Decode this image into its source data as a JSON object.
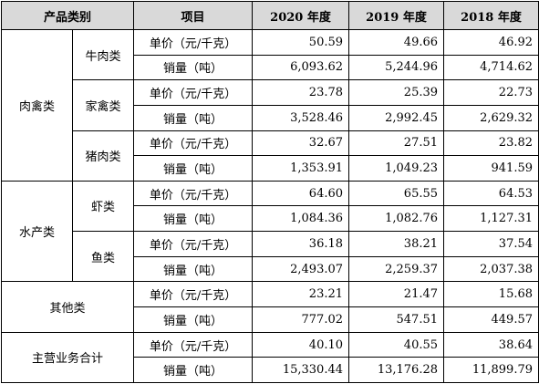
{
  "headers": {
    "category": "产品类别",
    "item": "项目",
    "y2020": "2020 年度",
    "y2019": "2019 年度",
    "y2018": "2018 年度"
  },
  "labels": {
    "price": "单价（元/千克）",
    "volume": "销量（吨）"
  },
  "groups": {
    "meat": "肉禽类",
    "aquatic": "水产类"
  },
  "products": {
    "beef": "牛肉类",
    "poultry": "家禽类",
    "pork": "猪肉类",
    "shrimp": "虾类",
    "fish": "鱼类",
    "other": "其他类",
    "total": "主营业务合计"
  },
  "values": {
    "beef": {
      "price": [
        "50.59",
        "49.66",
        "46.92"
      ],
      "volume": [
        "6,093.62",
        "5,244.96",
        "4,714.62"
      ]
    },
    "poultry": {
      "price": [
        "23.78",
        "25.39",
        "22.73"
      ],
      "volume": [
        "3,528.46",
        "2,992.45",
        "2,629.32"
      ]
    },
    "pork": {
      "price": [
        "32.67",
        "27.51",
        "23.82"
      ],
      "volume": [
        "1,353.91",
        "1,049.23",
        "941.59"
      ]
    },
    "shrimp": {
      "price": [
        "64.60",
        "65.55",
        "64.53"
      ],
      "volume": [
        "1,084.36",
        "1,082.76",
        "1,127.31"
      ]
    },
    "fish": {
      "price": [
        "36.18",
        "38.21",
        "37.54"
      ],
      "volume": [
        "2,493.07",
        "2,259.37",
        "2,037.38"
      ]
    },
    "other": {
      "price": [
        "23.21",
        "21.47",
        "15.68"
      ],
      "volume": [
        "777.02",
        "547.51",
        "449.57"
      ]
    },
    "total": {
      "price": [
        "40.10",
        "40.55",
        "38.64"
      ],
      "volume": [
        "15,330.44",
        "13,176.28",
        "11,899.79"
      ]
    }
  }
}
